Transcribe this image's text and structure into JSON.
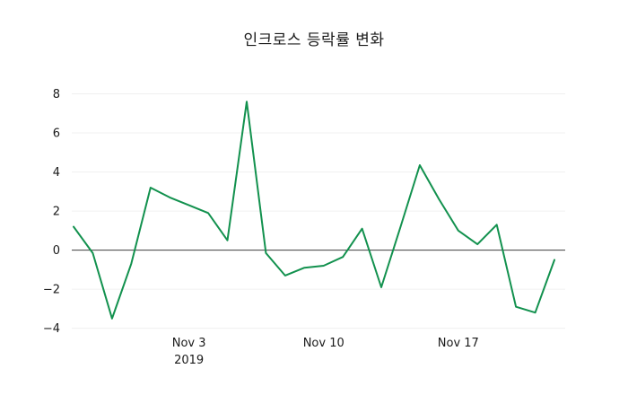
{
  "chart_data": {
    "type": "line",
    "title": "인크로스 등락률 변화",
    "xlabel": "",
    "ylabel": "",
    "ylim": [
      -4.2,
      8.3
    ],
    "grid": "horizontal-faint",
    "legend": "none",
    "line_color": "#12914e",
    "zero_line_color": "#3d3d3d",
    "grid_color": "#f0f0f0",
    "y_ticks": [
      8,
      6,
      4,
      2,
      0,
      -2,
      -4
    ],
    "y_tick_labels": [
      "8",
      "6",
      "4",
      "2",
      "0",
      "−2",
      "−4"
    ],
    "x_ticks": [
      {
        "index": 6,
        "label": "Nov 3",
        "sublabel": "2019"
      },
      {
        "index": 13,
        "label": "Nov 10",
        "sublabel": ""
      },
      {
        "index": 20,
        "label": "Nov 17",
        "sublabel": ""
      }
    ],
    "series": [
      {
        "name": "등락률",
        "values": [
          1.2,
          -0.15,
          -3.5,
          -0.7,
          3.2,
          2.7,
          2.3,
          1.9,
          0.5,
          7.6,
          -0.15,
          -1.3,
          -0.9,
          -0.8,
          -0.35,
          1.1,
          -1.9,
          1.2,
          4.35,
          2.6,
          1.0,
          0.3,
          1.3,
          -2.9,
          -3.2,
          -0.5
        ]
      }
    ]
  }
}
